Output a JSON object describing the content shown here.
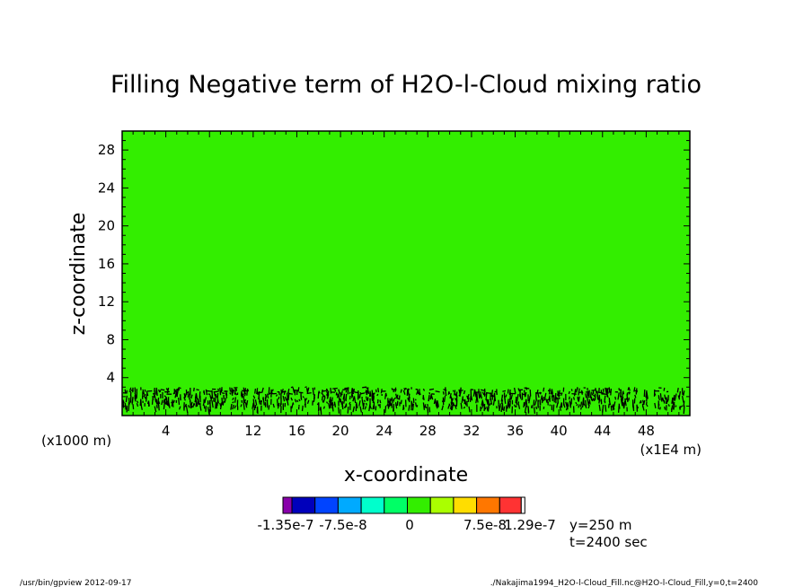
{
  "chart_data": {
    "type": "heatmap",
    "title": "Filling Negative term of H2O-l-Cloud mixing ratio",
    "xlabel": "x-coordinate",
    "ylabel": "z-coordinate",
    "x_unit_left": "(x1000 m)",
    "x_unit_right": "(x1E4 m)",
    "xlim": [
      0,
      52
    ],
    "ylim": [
      0,
      30
    ],
    "xticks_major": [
      4,
      8,
      12,
      16,
      20,
      24,
      28,
      32,
      36,
      40,
      44,
      48
    ],
    "xtick_labels": [
      "4",
      "8",
      "12",
      "16",
      "20",
      "24",
      "28",
      "32",
      "36",
      "40",
      "44",
      "48"
    ],
    "yticks_major": [
      4,
      8,
      12,
      16,
      20,
      24,
      28
    ],
    "ytick_labels": [
      "4",
      "8",
      "12",
      "16",
      "20",
      "24",
      "28"
    ],
    "background_value": 0,
    "background_color": "#33ee00",
    "contour_band_z": [
      0,
      3
    ],
    "contour_color": "#000000",
    "colorbar": {
      "colors": [
        "#8800aa",
        "#0000bb",
        "#0044ff",
        "#00aaff",
        "#00ffcc",
        "#00ff66",
        "#33ee00",
        "#aaff00",
        "#ffdd00",
        "#ff7700",
        "#ff3333"
      ],
      "labels": [
        "-1.35e-7",
        "-7.5e-8",
        "0",
        "7.5e-8",
        "1.29e-7"
      ]
    },
    "annotation_y": "y=250 m",
    "annotation_t": "t=2400 sec"
  },
  "footer": {
    "left": "/usr/bin/gpview   2012-09-17",
    "right": "./Nakajima1994_H2O-l-Cloud_Fill.nc@H2O-l-Cloud_Fill,y=0,t=2400"
  }
}
